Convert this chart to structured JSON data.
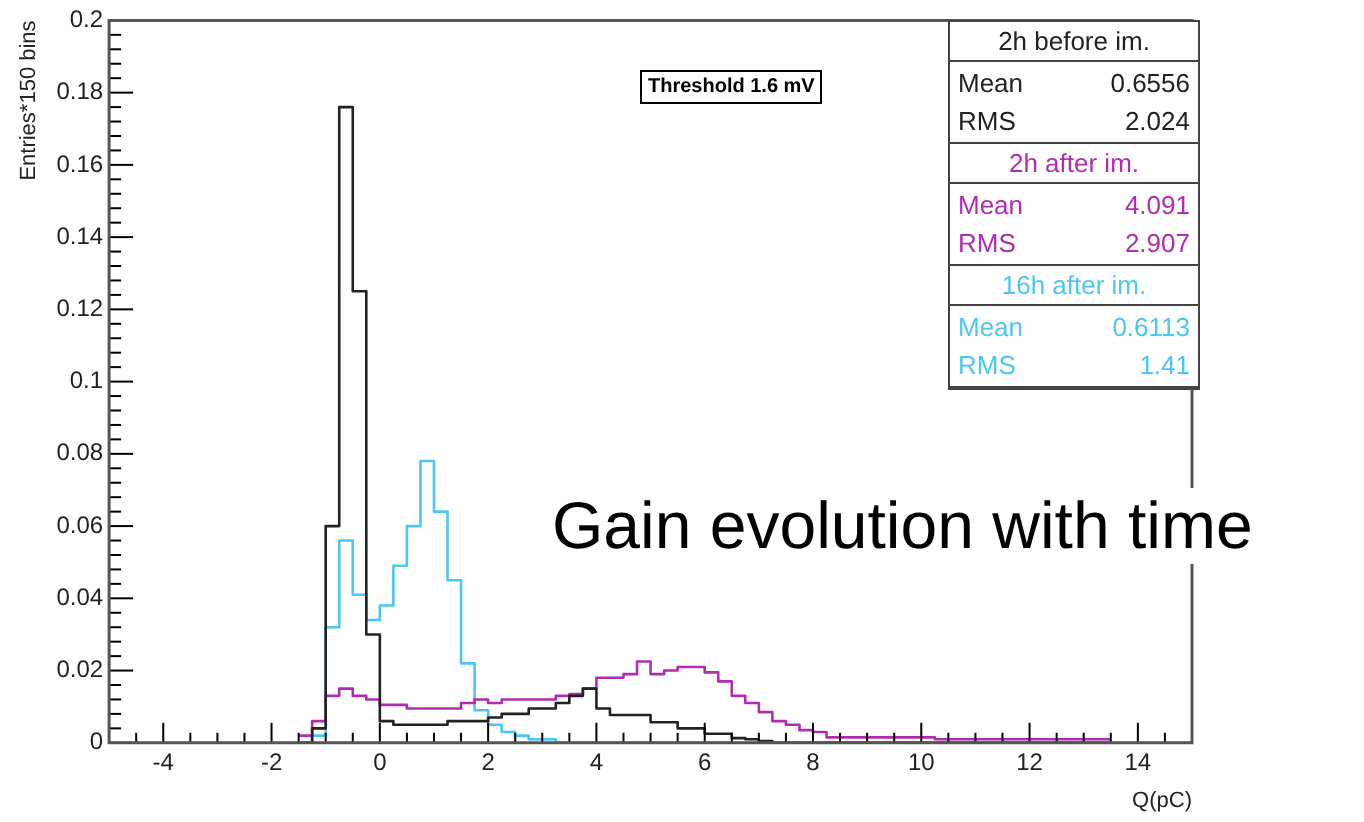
{
  "chart_data": {
    "type": "histogram",
    "xlabel": "Q(pC)",
    "ylabel": "Entries*150 bins",
    "legend": "top right",
    "grid": false,
    "annotations": [
      "Threshold 1.6 mV",
      "Mean 0.6556",
      "RMS 2.024",
      "Mean 4.091",
      "RMS 2.907",
      "Mean 0.6113",
      "RMS 1.41",
      "Gain evolution with time"
    ],
    "bins": [
      -1.5,
      -1.25,
      -1,
      -0.75,
      -0.5,
      -0.25,
      0,
      0.25,
      0.5,
      0.75,
      1,
      1.25,
      1.5,
      1.75,
      2,
      2.25,
      2.5,
      2.75,
      3,
      3.25,
      3.5,
      3.75,
      4,
      4.25,
      4.5,
      4.75,
      5,
      5.25,
      5.5,
      5.75,
      6,
      6.25,
      6.5,
      6.75,
      7,
      7.25,
      7.5,
      7.75,
      8,
      8.25,
      8.5,
      8.75,
      9,
      9.25,
      9.5,
      9.75,
      10,
      10.25,
      10.5,
      10.75,
      11,
      11.25,
      11.5,
      11.75,
      12,
      12.25,
      12.5,
      12.75,
      13,
      13.25,
      13.5
    ],
    "series": [
      {
        "name": "2h before im.",
        "color": "#222222",
        "values": [
          0,
          0.004,
          0.06,
          0.176,
          0.125,
          0.03,
          0.006,
          0.005,
          0.005,
          0.005,
          0.005,
          0.006,
          0.006,
          0.006,
          0.007,
          0.008,
          0.008,
          0.0095,
          0.0095,
          0.011,
          0.013,
          0.015,
          0.0095,
          0.0077,
          0.0077,
          0.0077,
          0.0057,
          0.0057,
          0.004,
          0.004,
          0.0025,
          0.0025,
          0.0013,
          0.001,
          0.0005,
          0,
          0,
          0,
          0,
          0,
          0,
          0,
          0,
          0,
          0,
          0,
          0,
          0,
          0,
          0,
          0,
          0,
          0,
          0,
          0,
          0,
          0,
          0,
          0,
          0
        ]
      },
      {
        "name": "2h after im.",
        "color": "#b02cb0",
        "values": [
          0.002,
          0.006,
          0.013,
          0.015,
          0.013,
          0.012,
          0.0105,
          0.0105,
          0.0095,
          0.0095,
          0.0095,
          0.0095,
          0.011,
          0.012,
          0.011,
          0.012,
          0.012,
          0.012,
          0.012,
          0.013,
          0.0135,
          0.015,
          0.018,
          0.018,
          0.019,
          0.0225,
          0.019,
          0.02,
          0.021,
          0.021,
          0.0195,
          0.017,
          0.013,
          0.011,
          0.0085,
          0.006,
          0.005,
          0.0035,
          0.003,
          0.0015,
          0.0015,
          0.0015,
          0.0015,
          0.0015,
          0.0015,
          0.0015,
          0.0015,
          0.001,
          0.001,
          0.001,
          0.001,
          0.001,
          0.001,
          0.001,
          0.001,
          0.001,
          0.001,
          0.001,
          0.001,
          0.001
        ]
      },
      {
        "name": "16h after im.",
        "color": "#4cc6f2",
        "values": [
          0,
          0.002,
          0.032,
          0.056,
          0.041,
          0.034,
          0.038,
          0.049,
          0.06,
          0.078,
          0.064,
          0.045,
          0.022,
          0.009,
          0.005,
          0.003,
          0.002,
          0.001,
          0.001,
          0,
          0,
          0,
          0,
          0,
          0,
          0,
          0,
          0,
          0,
          0,
          0,
          0,
          0,
          0,
          0,
          0,
          0,
          0,
          0,
          0,
          0,
          0,
          0,
          0,
          0,
          0,
          0,
          0,
          0,
          0,
          0,
          0,
          0,
          0,
          0,
          0,
          0,
          0,
          0,
          0
        ]
      }
    ],
    "xlim": [
      -5,
      15
    ],
    "xticks": [
      {
        "value": -4.5,
        "label": null
      },
      -4,
      {
        "value": -3.5,
        "label": null
      },
      {
        "value": -3,
        "label": null
      },
      {
        "value": -2.5,
        "label": null
      },
      -2,
      {
        "value": -1.5,
        "label": null
      },
      {
        "value": -1,
        "label": null
      },
      {
        "value": -0.5,
        "label": null
      },
      0,
      {
        "value": 0.5,
        "label": null
      },
      {
        "value": 1,
        "label": null
      },
      {
        "value": 1.5,
        "label": null
      },
      2,
      {
        "value": 2.5,
        "label": null
      },
      {
        "value": 3,
        "label": null
      },
      {
        "value": 3.5,
        "label": null
      },
      4,
      {
        "value": 4.5,
        "label": null
      },
      {
        "value": 5,
        "label": null
      },
      {
        "value": 5.5,
        "label": null
      },
      6,
      {
        "value": 6.5,
        "label": null
      },
      {
        "value": 7,
        "label": null
      },
      {
        "value": 7.5,
        "label": null
      },
      8,
      {
        "value": 8.5,
        "label": null
      },
      {
        "value": 9,
        "label": null
      },
      {
        "value": 9.5,
        "label": null
      },
      10,
      {
        "value": 10.5,
        "label": null
      },
      {
        "value": 11,
        "label": null
      },
      {
        "value": 11.5,
        "label": null
      },
      12,
      {
        "value": 12.5,
        "label": null
      },
      {
        "value": 13,
        "label": null
      },
      {
        "value": 13.5,
        "label": null
      },
      14,
      {
        "value": 14.5,
        "label": null
      }
    ],
    "ylim": [
      0,
      0.2
    ],
    "yticks": [
      0,
      {
        "value": 0.004,
        "label": null
      },
      {
        "value": 0.008,
        "label": null
      },
      {
        "value": 0.012,
        "label": null
      },
      {
        "value": 0.016,
        "label": null
      },
      0.02,
      {
        "value": 0.024,
        "label": null
      },
      {
        "value": 0.028,
        "label": null
      },
      {
        "value": 0.032,
        "label": null
      },
      {
        "value": 0.036,
        "label": null
      },
      0.04,
      {
        "value": 0.044,
        "label": null
      },
      {
        "value": 0.048,
        "label": null
      },
      {
        "value": 0.052,
        "label": null
      },
      {
        "value": 0.056,
        "label": null
      },
      0.06,
      {
        "value": 0.064,
        "label": null
      },
      {
        "value": 0.068,
        "label": null
      },
      {
        "value": 0.072,
        "label": null
      },
      {
        "value": 0.076,
        "label": null
      },
      0.08,
      {
        "value": 0.084,
        "label": null
      },
      {
        "value": 0.088,
        "label": null
      },
      {
        "value": 0.092,
        "label": null
      },
      {
        "value": 0.096,
        "label": null
      },
      0.1,
      {
        "value": 0.104,
        "label": null
      },
      {
        "value": 0.108,
        "label": null
      },
      {
        "value": 0.112,
        "label": null
      },
      {
        "value": 0.116,
        "label": null
      },
      0.12,
      {
        "value": 0.124,
        "label": null
      },
      {
        "value": 0.128,
        "label": null
      },
      {
        "value": 0.132,
        "label": null
      },
      {
        "value": 0.136,
        "label": null
      },
      0.14,
      {
        "value": 0.144,
        "label": null
      },
      {
        "value": 0.148,
        "label": null
      },
      {
        "value": 0.152,
        "label": null
      },
      {
        "value": 0.156,
        "label": null
      },
      0.16,
      {
        "value": 0.164,
        "label": null
      },
      {
        "value": 0.168,
        "label": null
      },
      {
        "value": 0.172,
        "label": null
      },
      {
        "value": 0.176,
        "label": null
      },
      0.18,
      {
        "value": 0.184,
        "label": null
      },
      {
        "value": 0.188,
        "label": null
      },
      {
        "value": 0.192,
        "label": null
      },
      {
        "value": 0.196,
        "label": null
      },
      0.2
    ]
  }
}
